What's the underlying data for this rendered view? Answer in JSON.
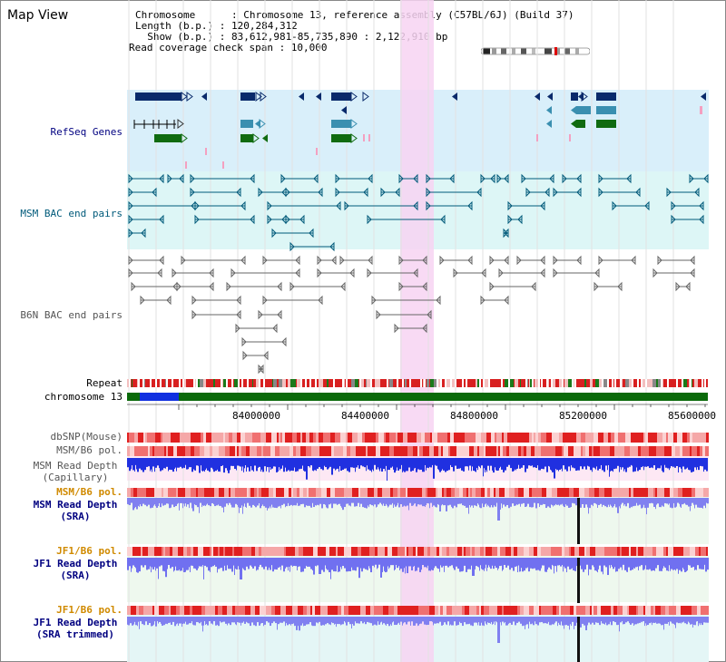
{
  "page": {
    "title": "Map View"
  },
  "info": {
    "chromosome": "Chromosome      : Chromosome 13, reference assembly (C57BL/6J) (Build 37)",
    "length": "Length (b.p.) : 120,284,312",
    "show": "  Show (b.p.) : 83,612,981-85,735,890 : 2,122,910 bp",
    "coverage": "Read coverage check span : 10,000"
  },
  "tracks": {
    "refseq": "RefSeq Genes",
    "msm_bac": "MSM BAC end pairs",
    "b6n_bac": "B6N BAC end pairs",
    "repeat": "Repeat",
    "chromosome": "chromosome 13",
    "dbsnp": "dbSNP(Mouse)",
    "msm_b6_pol": "MSM/B6 pol.",
    "msm_read_depth_cap": "MSM Read Depth\n(Capillary)",
    "msm_b6_pol2": "MSM/B6 pol.",
    "msm_read_depth_sra": "MSM Read Depth\n(SRA)",
    "jf1_b6_pol": "JF1/B6 pol.",
    "jf1_read_depth_sra": "JF1 Read Depth\n(SRA)",
    "jf1_b6_pol2": "JF1/B6 pol.",
    "jf1_read_depth_trim": "JF1 Read Depth\n(SRA trimmed)"
  },
  "axis": {
    "ticks": [
      "84000000",
      "84400000",
      "84800000",
      "85200000",
      "85600000"
    ]
  },
  "colors": {
    "refseq_bg": "#d9effa",
    "msm_bac_bg": "#ddf6f6",
    "highlight": "#f7d4f2",
    "gene_dark": "#0a2a6b",
    "gene_light": "#3a8fb0",
    "gene_green": "#106b10",
    "snp_pink": "#f0a0a0",
    "pol_red": "#e02020",
    "depth_blue": "#2030e0",
    "depth_light": "#8080f0",
    "label_navy": "#000080",
    "label_teal": "#005a7a",
    "label_gray": "#555555",
    "label_orange": "#d08a00"
  }
}
